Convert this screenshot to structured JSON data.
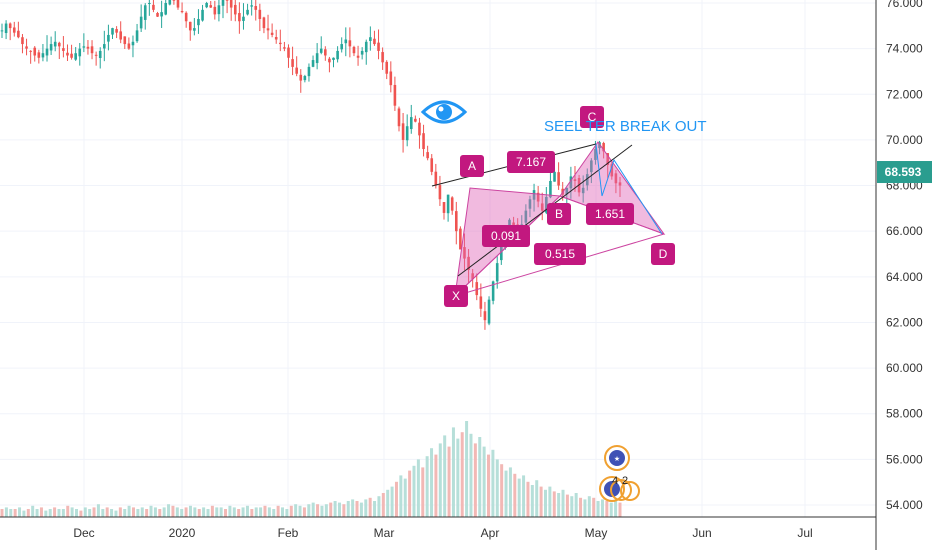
{
  "chart_data": {
    "type": "candlestick",
    "y_axis_ticks": [
      "76.000",
      "74.000",
      "72.000",
      "70.000",
      "68.000",
      "66.000",
      "64.000",
      "62.000",
      "60.000",
      "58.000",
      "56.000",
      "54.000"
    ],
    "y_tick_values": [
      76,
      74,
      72,
      70,
      68,
      66,
      64,
      62,
      60,
      58,
      56,
      54
    ],
    "x_axis_ticks": [
      "Dec",
      "2020",
      "Feb",
      "Mar",
      "Apr",
      "May",
      "Jun",
      "Jul"
    ],
    "ylim": [
      53.3,
      76.2
    ],
    "last_price": "68.593",
    "last_price_value": 68.593,
    "annotation_text": "SEEL  TER BREAK OUT",
    "pattern_points": [
      {
        "label": "X",
        "price": 63.6
      },
      {
        "label": "A",
        "price": 67.8
      },
      {
        "label": "B",
        "price": 66.3
      },
      {
        "label": "C",
        "price": 70.0
      },
      {
        "label": "D",
        "price": 65.8
      }
    ],
    "pattern_ratios": [
      "7.167",
      "0.091",
      "0.515",
      "1.651"
    ],
    "price_path": [
      [
        74.8,
        75.1,
        74.9,
        74.7,
        74.5,
        74.2,
        74.0,
        73.9,
        73.7,
        73.6,
        73.8,
        74.0,
        74.2,
        74.3,
        74.1,
        73.9,
        73.7,
        73.6,
        73.8,
        74.0,
        74.1,
        74.0,
        73.8,
        73.7,
        73.9,
        74.2,
        74.6,
        74.9,
        74.7,
        74.4,
        74.2,
        74.0,
        74.3,
        74.8,
        75.4,
        75.9,
        76.0,
        75.7,
        75.4,
        75.6,
        76.0,
        76.3,
        76.1,
        75.8,
        75.6,
        75.2,
        74.8,
        74.9,
        75.3,
        75.7,
        76.0,
        75.8,
        75.5,
        75.9,
        76.2,
        76.1,
        75.8,
        75.5,
        75.2,
        75.4,
        75.7,
        75.9,
        75.7,
        75.3,
        74.9,
        74.8,
        74.6,
        74.4,
        74.2,
        74.0,
        73.6,
        73.2,
        72.9,
        72.6,
        72.8,
        73.2,
        73.5,
        73.8,
        74.0,
        73.7,
        73.4,
        73.6,
        73.9,
        74.2,
        74.4,
        74.1,
        73.8,
        73.6,
        73.9,
        74.3,
        74.5,
        74.2,
        73.9,
        73.4,
        72.9,
        72.4,
        71.5,
        70.6,
        70.0,
        70.6,
        71.0,
        70.8,
        70.2,
        69.6,
        69.2,
        68.6,
        68.0,
        67.4,
        66.8,
        67.6,
        66.9,
        66.0,
        65.2,
        64.8,
        64.3,
        63.9,
        63.2,
        62.6,
        62.1,
        63.0,
        63.8,
        64.6,
        65.4,
        66.0,
        66.5,
        66.2,
        65.8,
        66.3,
        66.9,
        67.4,
        67.8,
        67.3,
        66.9,
        67.5,
        68.2,
        68.6,
        68.0,
        67.6,
        67.9,
        68.4,
        68.2,
        67.7,
        67.9,
        68.5,
        69.1,
        69.6,
        69.9,
        69.5,
        68.9,
        68.4,
        68.1,
        68.0
      ]
    ],
    "volume_bars": [
      [
        0.5,
        0.6,
        0.5,
        0.5,
        0.6,
        0.4,
        0.5,
        0.7,
        0.5,
        0.6,
        0.4,
        0.5,
        0.6,
        0.5,
        0.5,
        0.7,
        0.6,
        0.5,
        0.4,
        0.6,
        0.5,
        0.6,
        0.8,
        0.5,
        0.6,
        0.5,
        0.4,
        0.6,
        0.5,
        0.7,
        0.6,
        0.5,
        0.6,
        0.5,
        0.7,
        0.6,
        0.5,
        0.6,
        0.8,
        0.7,
        0.6,
        0.5,
        0.6,
        0.7,
        0.6,
        0.5,
        0.6,
        0.5,
        0.7,
        0.6,
        0.6,
        0.5,
        0.7,
        0.6,
        0.5,
        0.6,
        0.7,
        0.5,
        0.6,
        0.6,
        0.7,
        0.6,
        0.5,
        0.7,
        0.6,
        0.5,
        0.7,
        0.8,
        0.7,
        0.6,
        0.8,
        0.9,
        0.8,
        0.7,
        0.8,
        0.9,
        1.0,
        0.9,
        0.8,
        1.0,
        1.1,
        1.0,
        0.9,
        1.1,
        1.2,
        1.0,
        1.3,
        1.5,
        1.7,
        1.9,
        2.2,
        2.6,
        2.4,
        2.9,
        3.2,
        3.6,
        3.1,
        3.8,
        4.3,
        3.9,
        4.6,
        5.1,
        4.4,
        5.6,
        4.9,
        5.3,
        6.0,
        5.2,
        4.6,
        5.0,
        4.4,
        3.9,
        4.2,
        3.6,
        3.3,
        2.9,
        3.1,
        2.7,
        2.4,
        2.6,
        2.2,
        2.0,
        2.3,
        1.9,
        1.7,
        1.9,
        1.6,
        1.5,
        1.7,
        1.4,
        1.3,
        1.5,
        1.2,
        1.1,
        1.3,
        1.2,
        1.0,
        1.1,
        1.0,
        0.9,
        1.0,
        0.9
      ]
    ]
  },
  "icons": {
    "eye": "eye-icon",
    "earnings": "earnings-icon",
    "news": "news-flag-icon"
  },
  "event_counts": [
    "4",
    "2"
  ],
  "colors": {
    "up": "#26a69a",
    "down": "#ef5350",
    "pattern_fill": "#e066b8",
    "pattern_stroke": "#cc44a0",
    "label_bg": "#c2187f",
    "price_label_bg": "#2a9d8f",
    "annotation": "#2196f3",
    "grid": "#f0f3fa"
  }
}
